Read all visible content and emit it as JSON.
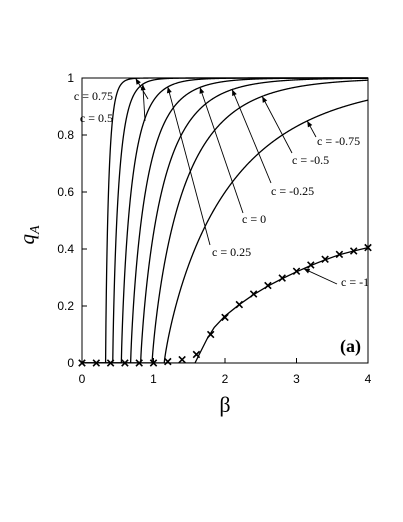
{
  "chart_data": {
    "type": "line",
    "panel_label": "(a)",
    "xlabel": "β",
    "ylabel": "q",
    "ylabel_sub": "A",
    "xlim": [
      0,
      4
    ],
    "ylim": [
      0,
      1
    ],
    "x_ticks": [
      0,
      1,
      2,
      3,
      4
    ],
    "x_tick_labels": [
      "0",
      "1",
      "2",
      "3",
      "4"
    ],
    "y_ticks": [
      0,
      0.2,
      0.4,
      0.6,
      0.8,
      1
    ],
    "y_tick_labels": [
      "0",
      "0.2",
      "0.4",
      "0.6",
      "0.8",
      "1"
    ],
    "grid": false,
    "series": [
      {
        "name": "c = 0.75",
        "onset": 0.33,
        "rate": 14.0,
        "label": {
          "text": "c = 0.75"
        }
      },
      {
        "name": "c = 0.5",
        "onset": 0.43,
        "rate": 8.0,
        "label": {
          "text": "c = 0.5"
        }
      },
      {
        "name": "c = 0.25",
        "onset": 0.55,
        "rate": 5.0,
        "label": {
          "text": "c = 0.25"
        }
      },
      {
        "name": "c = 0",
        "onset": 0.68,
        "rate": 3.5,
        "label": {
          "text": "c = 0"
        }
      },
      {
        "name": "c = -0.25",
        "onset": 0.82,
        "rate": 2.6,
        "label": {
          "text": "c = -0.25"
        }
      },
      {
        "name": "c = -0.5",
        "onset": 0.98,
        "rate": 1.9,
        "label": {
          "text": "c = -0.5"
        }
      },
      {
        "name": "c = -0.75",
        "onset": 1.15,
        "rate": 1.05,
        "label": {
          "text": "c = -0.75"
        }
      },
      {
        "name": "c = -1",
        "label": {
          "text": "c = -1"
        },
        "x": [
          1.58,
          1.65,
          1.75,
          1.85,
          2.0,
          2.2,
          2.4,
          2.6,
          2.8,
          3.0,
          3.2,
          3.4,
          3.6,
          3.8,
          4.0
        ],
        "y": [
          0.0,
          0.035,
          0.085,
          0.125,
          0.165,
          0.205,
          0.24,
          0.27,
          0.296,
          0.32,
          0.342,
          0.362,
          0.38,
          0.393,
          0.405
        ]
      }
    ],
    "markers": {
      "symbol": "×",
      "x": [
        0,
        0.2,
        0.4,
        0.6,
        0.8,
        1.0,
        1.2,
        1.4,
        1.6,
        1.8,
        2.0,
        2.2,
        2.4,
        2.6,
        2.8,
        3.0,
        3.2,
        3.4,
        3.6,
        3.8,
        4.0
      ],
      "y": [
        0,
        0,
        0,
        0,
        0,
        0,
        0.005,
        0.012,
        0.03,
        0.1,
        0.16,
        0.205,
        0.242,
        0.272,
        0.298,
        0.322,
        0.344,
        0.364,
        0.381,
        0.393,
        0.405
      ]
    }
  }
}
